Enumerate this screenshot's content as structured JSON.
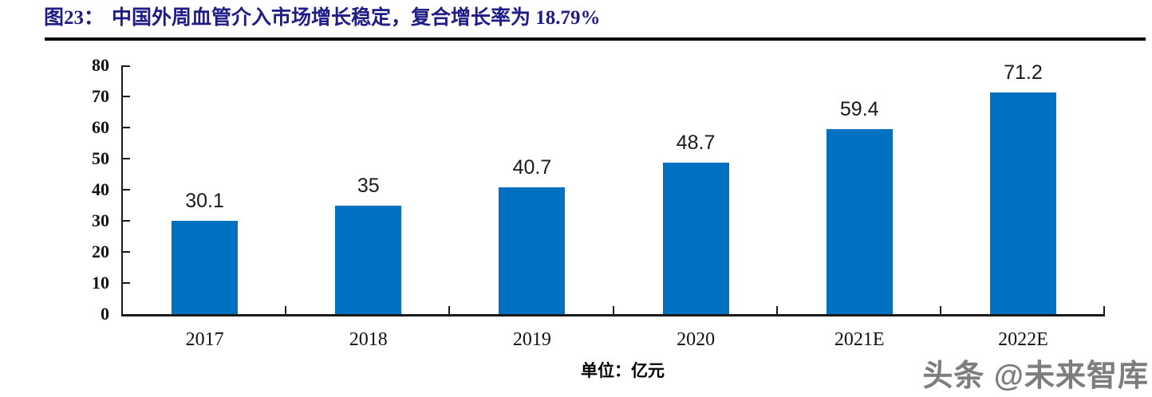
{
  "header": {
    "figure_label": "图23：",
    "title": "中国外周血管介入市场增长稳定，复合增长率为 18.79%"
  },
  "chart_data": {
    "type": "bar",
    "title": "中国外周血管介入市场增长稳定，复合增长率为 18.79%",
    "categories": [
      "2017",
      "2018",
      "2019",
      "2020",
      "2021E",
      "2022E"
    ],
    "values": [
      30.1,
      35,
      40.7,
      48.7,
      59.4,
      71.2
    ],
    "value_labels": [
      "30.1",
      "35",
      "40.7",
      "48.7",
      "59.4",
      "71.2"
    ],
    "xlabel": "",
    "ylabel": "",
    "unit": "单位：亿元",
    "ylim": [
      0,
      80
    ],
    "yticks": [
      0,
      10,
      20,
      30,
      40,
      50,
      60,
      70,
      80
    ],
    "grid": false,
    "legend": "none",
    "bar_color": "#0070C0"
  },
  "footer": {
    "unit_label": "单位：亿元",
    "watermark": "头条 @未来智库"
  },
  "colors": {
    "title_text": "#1f1c86",
    "bar": "#0070C0",
    "axis": "#1a1a1a",
    "divider": "#050505",
    "watermark": "#7d7d7d"
  }
}
